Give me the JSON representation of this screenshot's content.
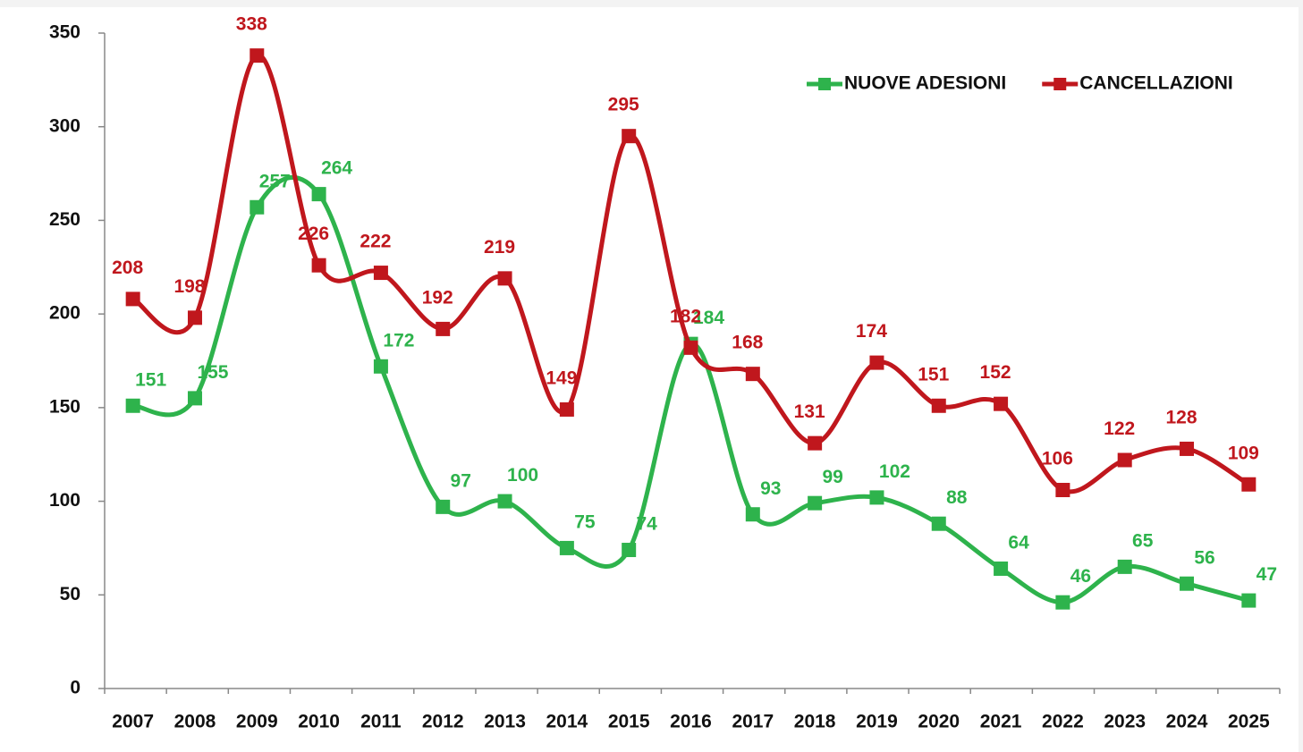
{
  "chart_data": {
    "type": "line",
    "categories": [
      "2007",
      "2008",
      "2009",
      "2010",
      "2011",
      "2012",
      "2013",
      "2014",
      "2015",
      "2016",
      "2017",
      "2018",
      "2019",
      "2020",
      "2021",
      "2022",
      "2023",
      "2024",
      "2025"
    ],
    "series": [
      {
        "name": "NUOVE ADESIONI",
        "color": "#2eb34c",
        "values": [
          151,
          155,
          257,
          264,
          172,
          97,
          100,
          75,
          74,
          184,
          93,
          99,
          102,
          88,
          64,
          46,
          65,
          56,
          47
        ]
      },
      {
        "name": "CANCELLAZIONI",
        "color": "#c0171d",
        "values": [
          208,
          198,
          338,
          226,
          222,
          192,
          219,
          149,
          295,
          182,
          168,
          131,
          174,
          151,
          152,
          106,
          122,
          128,
          109
        ]
      }
    ],
    "ylim": [
      0,
      350
    ],
    "yticks": [
      0,
      50,
      100,
      150,
      200,
      250,
      300,
      350
    ],
    "smooth": true,
    "legend": "upper right"
  }
}
